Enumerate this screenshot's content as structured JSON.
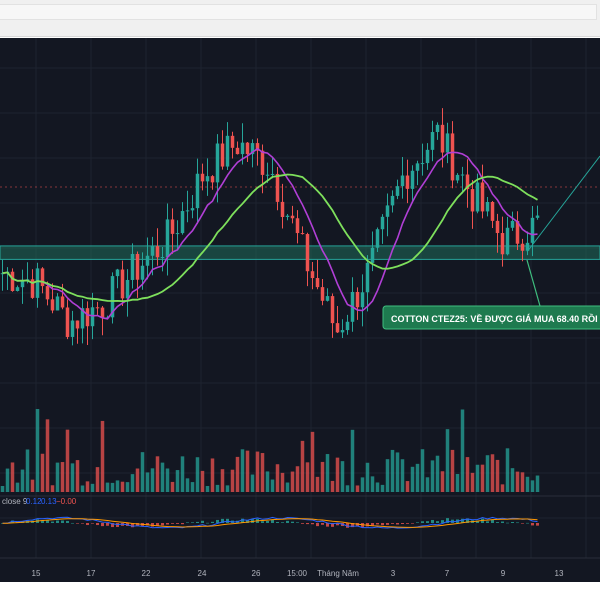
{
  "macd_legend": {
    "name": "close 9",
    "v1": "0.12",
    "v2": "0.13",
    "v3": "−0.00"
  },
  "annotation": {
    "text": "COTTON CTEZ25: VỀ ĐƯỢC GIÁ MUA 68.40 RỒI"
  },
  "x_axis": {
    "ticks": [
      "15",
      "17",
      "22",
      "24",
      "26",
      "15:00",
      "Tháng Năm",
      "3",
      "7",
      "9",
      "13"
    ]
  },
  "colors": {
    "background": "#131722",
    "up_candle": "#26a69a",
    "down_candle": "#ef5350",
    "ma_fast": "#b13fd6",
    "ma_slow": "#7ee05c",
    "zone_fill": "#1f6b5a",
    "zone_border": "#26a69a",
    "annotation_bg": "#1e7a4f",
    "price_line": "#ef5350",
    "trend_line": "#26a69a"
  },
  "chart_data": {
    "type": "candlestick",
    "title": "",
    "x_tick_labels": [
      "15",
      "17",
      "22",
      "24",
      "26",
      "15:00",
      "Tháng Năm",
      "3",
      "7",
      "9",
      "13"
    ],
    "series": [
      {
        "kind": "price",
        "approx_close_trend": [
          66.5,
          66.3,
          65.4,
          65.8,
          66.6,
          67.3,
          68.7,
          69.4,
          68.9,
          66.9,
          65.2,
          66.6,
          68.7,
          69.6,
          68.3,
          67.2,
          67.6
        ]
      },
      {
        "kind": "moving_average",
        "color": "purple"
      },
      {
        "kind": "moving_average",
        "color": "green"
      },
      {
        "kind": "volume"
      },
      {
        "kind": "macd"
      }
    ],
    "levels": [
      {
        "label": "support_zone",
        "from": 66.8,
        "to": 67.1
      }
    ]
  }
}
